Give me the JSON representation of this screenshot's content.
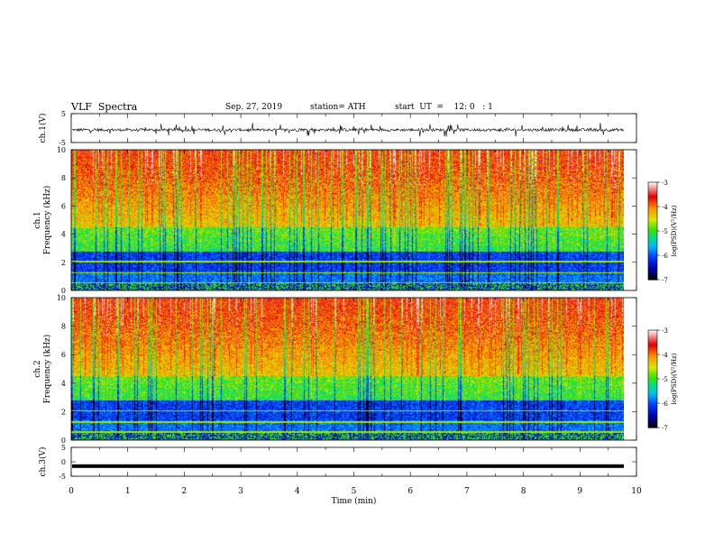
{
  "header": {
    "title": "VLF  Spectra",
    "date": "Sep. 27, 2019",
    "station": "station= ATH",
    "start": "start  UT  =    12: 0   : 1"
  },
  "chart_data": {
    "type": "heatmap",
    "xlabel": "Time  (min)",
    "xlim": [
      0,
      10
    ],
    "xticks": [
      "0",
      "1",
      "2",
      "3",
      "4",
      "5",
      "6",
      "7",
      "8",
      "9",
      "10"
    ],
    "panels": [
      {
        "id": "ch1-waveform",
        "type": "line",
        "ylabel": "ch.1(V)",
        "ylim": [
          -5,
          5
        ],
        "yticks": [
          "5",
          "-5"
        ],
        "color": "#000000",
        "description_level": "noisy waveform centred near 0 with frequent spikes to about ±3 V"
      },
      {
        "id": "ch1-spectrogram",
        "type": "heatmap",
        "ylabel": "ch.1\nFrequency  (kHz)",
        "ylabel_lines": [
          "ch.1",
          "Frequency  (kHz)"
        ],
        "ylim": [
          0,
          10
        ],
        "yticks": [
          "0",
          "2",
          "4",
          "6",
          "8",
          "10"
        ],
        "colorbar": {
          "label": "log(PSD)(V²/Hz)",
          "range": [
            -7,
            -3
          ],
          "ticks": [
            "-3",
            "-4",
            "-5",
            "-6",
            "-7"
          ]
        }
      },
      {
        "id": "ch2-spectrogram",
        "type": "heatmap",
        "ylabel": "ch.2\nFrequency  (kHz)",
        "ylabel_lines": [
          "ch.2",
          "Frequency  (kHz)"
        ],
        "ylim": [
          0,
          10
        ],
        "yticks": [
          "0",
          "2",
          "4",
          "6",
          "8",
          "10"
        ],
        "colorbar": {
          "label": "log(PSD)(V²/Hz)",
          "range": [
            -7,
            -3
          ],
          "ticks": [
            "-3",
            "-4",
            "-5",
            "-6",
            "-7"
          ]
        }
      },
      {
        "id": "ch3-waveform",
        "type": "line",
        "ylabel": "ch.3(V)",
        "ylim": [
          -5,
          5
        ],
        "yticks": [
          "5",
          "0",
          "-5"
        ],
        "color": "#000000",
        "level_v": -1.5
      }
    ],
    "colormap": [
      "#000000",
      "#0000c8",
      "#0050ff",
      "#00c8ff",
      "#00e070",
      "#50e000",
      "#e8e800",
      "#ff8800",
      "#e80000",
      "#ffffff"
    ]
  }
}
